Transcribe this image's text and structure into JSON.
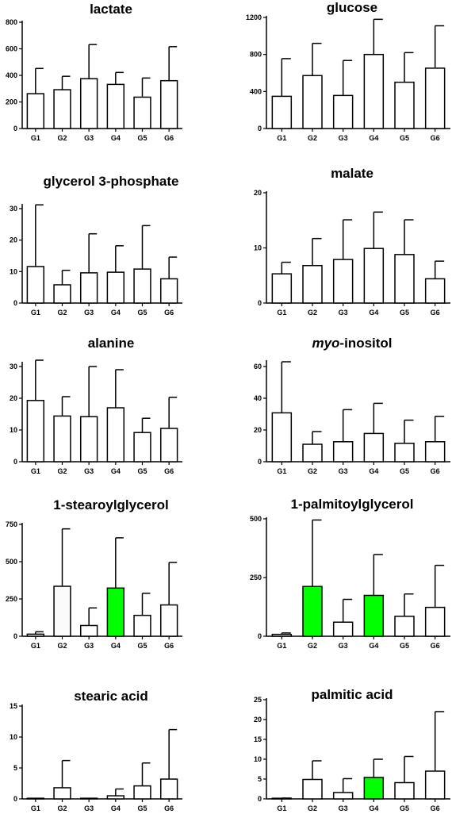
{
  "chart_data": [
    {
      "type": "bar",
      "title": "lactate",
      "categories": [
        "G1",
        "G2",
        "G3",
        "G4",
        "G5",
        "G6"
      ],
      "values": [
        262,
        292,
        375,
        332,
        236,
        360
      ],
      "error_upper": [
        452,
        393,
        632,
        422,
        380,
        616
      ],
      "ylim": [
        0,
        800
      ],
      "yticks": [
        0,
        200,
        400,
        600,
        800
      ],
      "bar_colors": [
        "#ffffff",
        "#ffffff",
        "#ffffff",
        "#ffffff",
        "#ffffff",
        "#ffffff"
      ]
    },
    {
      "type": "bar",
      "title": "glucose",
      "categories": [
        "G1",
        "G2",
        "G3",
        "G4",
        "G5",
        "G6"
      ],
      "values": [
        348,
        572,
        357,
        800,
        500,
        652
      ],
      "error_upper": [
        755,
        920,
        735,
        1180,
        820,
        1110
      ],
      "ylim": [
        0,
        1200
      ],
      "yticks": [
        0,
        400,
        800,
        1200
      ],
      "bar_colors": [
        "#ffffff",
        "#ffffff",
        "#ffffff",
        "#ffffff",
        "#ffffff",
        "#ffffff"
      ]
    },
    {
      "type": "bar",
      "title": "glycerol 3-phosphate",
      "categories": [
        "G1",
        "G2",
        "G3",
        "G4",
        "G5",
        "G6"
      ],
      "values": [
        11.6,
        5.8,
        9.6,
        9.8,
        10.8,
        7.7
      ],
      "error_upper": [
        31.2,
        10.4,
        22.0,
        18.2,
        24.6,
        14.6
      ],
      "ylim": [
        0,
        31
      ],
      "yticks": [
        0,
        10,
        20,
        30
      ],
      "bar_colors": [
        "#ffffff",
        "#ffffff",
        "#ffffff",
        "#ffffff",
        "#ffffff",
        "#ffffff"
      ]
    },
    {
      "type": "bar",
      "title": "malate",
      "categories": [
        "G1",
        "G2",
        "G3",
        "G4",
        "G5",
        "G6"
      ],
      "values": [
        5.3,
        6.8,
        7.9,
        9.9,
        8.8,
        4.4
      ],
      "error_upper": [
        7.4,
        11.7,
        15.1,
        16.5,
        15.1,
        7.6
      ],
      "ylim": [
        0,
        20
      ],
      "yticks": [
        0,
        10,
        20
      ],
      "bar_colors": [
        "#ffffff",
        "#ffffff",
        "#ffffff",
        "#ffffff",
        "#ffffff",
        "#ffffff"
      ]
    },
    {
      "type": "bar",
      "title": "alanine",
      "categories": [
        "G1",
        "G2",
        "G3",
        "G4",
        "G5",
        "G6"
      ],
      "values": [
        19.3,
        14.4,
        14.2,
        17.0,
        9.2,
        10.5
      ],
      "error_upper": [
        32.0,
        20.5,
        30.0,
        29.0,
        13.7,
        20.3
      ],
      "ylim": [
        0,
        31
      ],
      "yticks": [
        0,
        10,
        20,
        30
      ],
      "bar_colors": [
        "#ffffff",
        "#ffffff",
        "#ffffff",
        "#ffffff",
        "#ffffff",
        "#ffffff"
      ]
    },
    {
      "type": "bar",
      "title_italic": "myo",
      "title_rest": "-inositol",
      "categories": [
        "G1",
        "G2",
        "G3",
        "G4",
        "G5",
        "G6"
      ],
      "values": [
        30.8,
        11.0,
        12.6,
        17.8,
        11.6,
        12.6
      ],
      "error_upper": [
        63.0,
        19.0,
        32.8,
        36.8,
        26.2,
        28.6
      ],
      "ylim": [
        0,
        63
      ],
      "yticks": [
        0,
        20,
        40,
        60
      ],
      "bar_colors": [
        "#ffffff",
        "#ffffff",
        "#ffffff",
        "#ffffff",
        "#ffffff",
        "#ffffff"
      ]
    },
    {
      "type": "bar",
      "title": "1-stearoylglycerol",
      "categories": [
        "G1",
        "G2",
        "G3",
        "G4",
        "G5",
        "G6"
      ],
      "values": [
        14,
        335,
        72,
        323,
        140,
        210
      ],
      "error_upper": [
        30,
        720,
        190,
        660,
        288,
        495
      ],
      "ylim": [
        0,
        750
      ],
      "yticks": [
        0,
        250,
        500,
        750
      ],
      "bar_colors": [
        "#ffffff",
        "#fafafa",
        "#ffffff",
        "#00ff00",
        "#ffffff",
        "#ffffff"
      ]
    },
    {
      "type": "bar",
      "title": "1-palmitoylglycerol",
      "categories": [
        "G1",
        "G2",
        "G3",
        "G4",
        "G5",
        "G6"
      ],
      "values": [
        8,
        212,
        60,
        174,
        85,
        123
      ],
      "error_upper": [
        14,
        495,
        157,
        348,
        180,
        302
      ],
      "ylim": [
        0,
        500
      ],
      "yticks": [
        0,
        250,
        500
      ],
      "bar_colors": [
        "#ffffff",
        "#00ff00",
        "#ffffff",
        "#00ff00",
        "#ffffff",
        "#ffffff"
      ]
    },
    {
      "type": "bar",
      "title": "stearic acid",
      "categories": [
        "G1",
        "G2",
        "G3",
        "G4",
        "G5",
        "G6"
      ],
      "values": [
        0.05,
        1.8,
        0.05,
        0.5,
        2.1,
        3.2
      ],
      "error_upper": [
        0.1,
        6.2,
        0.1,
        1.6,
        5.8,
        11.2
      ],
      "ylim": [
        0,
        15
      ],
      "yticks": [
        0,
        5,
        10,
        15
      ],
      "bar_colors": [
        "#ffffff",
        "#ffffff",
        "#ffffff",
        "#ffffff",
        "#ffffff",
        "#ffffff"
      ]
    },
    {
      "type": "bar",
      "title": "palmitic acid",
      "categories": [
        "G1",
        "G2",
        "G3",
        "G4",
        "G5",
        "G6"
      ],
      "values": [
        0.1,
        4.9,
        1.6,
        5.4,
        4.1,
        7.0
      ],
      "error_upper": [
        0.2,
        9.6,
        5.1,
        10.0,
        10.7,
        22.0
      ],
      "ylim": [
        0,
        25
      ],
      "yticks": [
        0,
        5,
        10,
        15,
        20,
        25
      ],
      "bar_colors": [
        "#ffffff",
        "#ffffff",
        "#ffffff",
        "#00ff00",
        "#ffffff",
        "#ffffff"
      ]
    }
  ]
}
